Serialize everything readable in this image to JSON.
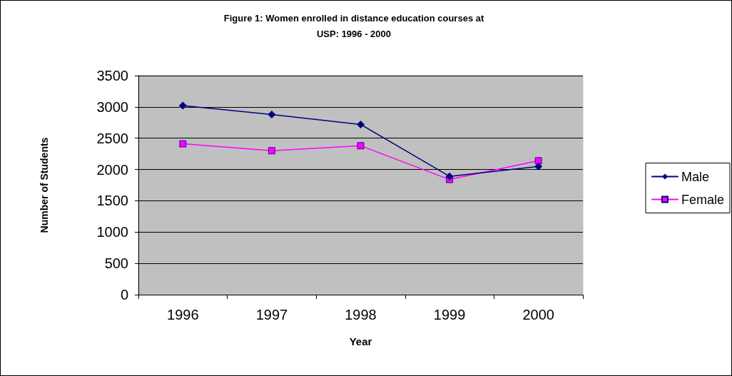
{
  "chart_data": {
    "type": "line",
    "title": "Figure 1: Women enrolled in distance education courses at\nUSP: 1996 - 2000",
    "xlabel": "Year",
    "ylabel": "Number of Students",
    "categories": [
      "1996",
      "1997",
      "1998",
      "1999",
      "2000"
    ],
    "series": [
      {
        "name": "Male",
        "color": "#000080",
        "marker": "diamond",
        "values": [
          3020,
          2880,
          2720,
          1890,
          2050
        ]
      },
      {
        "name": "Female",
        "color": "#ff00ff",
        "marker": "square",
        "values": [
          2410,
          2300,
          2380,
          1840,
          2140
        ]
      }
    ],
    "ylim": [
      0,
      3500
    ],
    "yticks": [
      0,
      500,
      1000,
      1500,
      2000,
      2500,
      3000,
      3500
    ],
    "grid": "y",
    "legend": "right",
    "line_style": "solid"
  }
}
